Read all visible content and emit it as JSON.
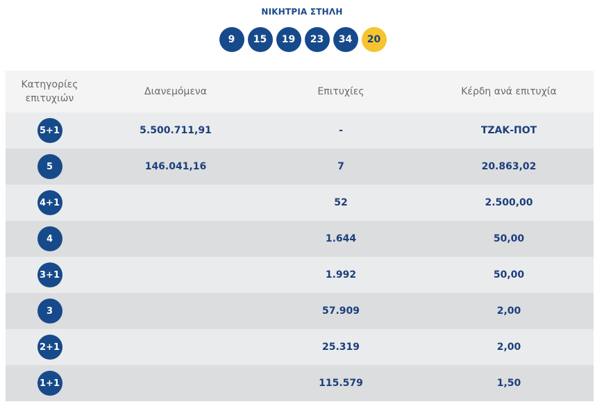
{
  "winning_title": "ΝΙΚΗΤΡΙΑ ΣΤΗΛΗ",
  "numbers": [
    "9",
    "15",
    "19",
    "23",
    "34"
  ],
  "joker": "20",
  "colors": {
    "ball": "#174a8b",
    "joker_ball": "#f6c42e",
    "text": "#1c3f7c"
  },
  "table": {
    "headers": {
      "category": "Κατηγορίες επιτυχιών",
      "distributed": "Διανεμόμενα",
      "winners": "Επιτυχίες",
      "prize_per_winner": "Κέρδη ανά επιτυχία"
    },
    "rows": [
      {
        "category": "5+1",
        "distributed": "5.500.711,91",
        "winners": "-",
        "prize": "ΤΖΑΚ-ΠΟΤ"
      },
      {
        "category": "5",
        "distributed": "146.041,16",
        "winners": "7",
        "prize": "20.863,02"
      },
      {
        "category": "4+1",
        "distributed": "",
        "winners": "52",
        "prize": "2.500,00"
      },
      {
        "category": "4",
        "distributed": "",
        "winners": "1.644",
        "prize": "50,00"
      },
      {
        "category": "3+1",
        "distributed": "",
        "winners": "1.992",
        "prize": "50,00"
      },
      {
        "category": "3",
        "distributed": "",
        "winners": "57.909",
        "prize": "2,00"
      },
      {
        "category": "2+1",
        "distributed": "",
        "winners": "25.319",
        "prize": "2,00"
      },
      {
        "category": "1+1",
        "distributed": "",
        "winners": "115.579",
        "prize": "1,50"
      }
    ]
  }
}
